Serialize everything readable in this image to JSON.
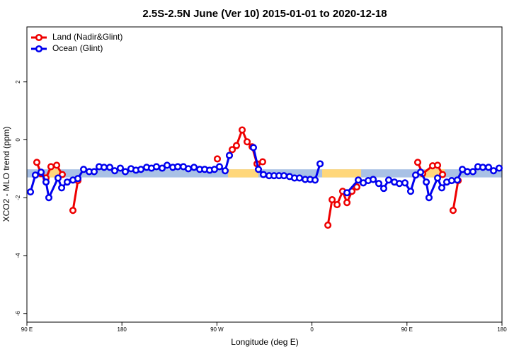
{
  "chart_data": {
    "type": "line",
    "title": "2.5S-2.5N June (Ver 10)   2015-01-01 to 2020-12-18",
    "xlabel": "Longitude (deg E)",
    "ylabel": "XCO2 - MLO trend (ppm)",
    "xlim": [
      90,
      540
    ],
    "ylim": [
      -6.3,
      3.9
    ],
    "xticks": [
      {
        "value": 90,
        "label": "90 E"
      },
      180,
      {
        "value": 270,
        "label": "90 W"
      },
      {
        "value": 360,
        "label": "0"
      },
      {
        "value": 450,
        "label": "90 E"
      },
      {
        "value": 540,
        "label": "180"
      }
    ],
    "yticks": [
      -6,
      -4,
      -2,
      0,
      2
    ],
    "legend": "upper left",
    "reference_band": {
      "low": -1.3,
      "high": -1.02,
      "color": "#a9c1e5"
    },
    "highlight_ranges": {
      "color": "#ffd77a",
      "ranges": [
        [
          111.5,
          121.5
        ],
        [
          280.5,
          309.3
        ],
        [
          369.7,
          406.6
        ],
        [
          466.9,
          485.7
        ]
      ]
    },
    "series": [
      {
        "name": "Land (Nadir&Glint)",
        "color": "#ee0000",
        "x": [
          99.4,
          103.4,
          108.1,
          112.8,
          118.2,
          123.5,
          null,
          133.6,
          138.3,
          null,
          270.4,
          null,
          281.8,
          284.5,
          288.5,
          293.9,
          298.6,
          303.3,
          308.0,
          313.3,
          null,
          375.1,
          379.1,
          383.8,
          389.1,
          393.2,
          397.9,
          402.5,
          null,
          460.2,
          464.9,
          474.3,
          479.0,
          483.7,
          null,
          493.7,
          498.5
        ],
        "values": [
          -0.78,
          -1.17,
          -1.32,
          -0.93,
          -0.88,
          -1.2,
          null,
          -2.44,
          -1.41,
          null,
          -0.66,
          null,
          -0.54,
          -0.34,
          -0.2,
          0.34,
          -0.07,
          -0.24,
          -0.83,
          -0.76,
          null,
          -2.95,
          -2.07,
          -2.24,
          -1.78,
          -2.17,
          -1.78,
          -1.63,
          null,
          -0.78,
          -1.17,
          -0.9,
          -0.88,
          -1.2,
          null,
          -2.44,
          -1.41
        ]
      },
      {
        "name": "Ocean (Glint)",
        "color": "#0000ee",
        "x": [
          93.4,
          98.0,
          103.4,
          108.1,
          110.8,
          119.5,
          122.9,
          128.2,
          133.6,
          138.3,
          143.7,
          149.0,
          153.7,
          158.4,
          163.1,
          168.5,
          173.2,
          178.5,
          183.2,
          188.6,
          193.3,
          198.0,
          203.4,
          208.0,
          212.7,
          218.1,
          222.8,
          228.2,
          232.9,
          238.2,
          242.9,
          248.3,
          253.7,
          258.4,
          263.1,
          267.7,
          272.4,
          277.8,
          281.8,
          null,
          304.6,
          309.3,
          314.0,
          319.4,
          324.1,
          328.8,
          333.5,
          338.8,
          343.5,
          348.2,
          353.6,
          358.3,
          363.0,
          367.7,
          null,
          393.2,
          403.9,
          408.6,
          413.3,
          418.0,
          423.3,
          428.0,
          432.7,
          438.1,
          442.8,
          448.1,
          453.5,
          458.2,
          462.9,
          468.3,
          470.9,
          479.0,
          483.0,
          487.7,
          492.4,
          497.7,
          502.5,
          507.2,
          512.5,
          517.2,
          521.9,
          527.3,
          532.0,
          537.3
        ],
        "values": [
          -1.8,
          -1.22,
          -1.12,
          -1.46,
          -2.0,
          -1.32,
          -1.66,
          -1.46,
          -1.39,
          -1.34,
          -1.02,
          -1.1,
          -1.1,
          -0.93,
          -0.95,
          -0.95,
          -1.07,
          -0.98,
          -1.1,
          -1.0,
          -1.05,
          -1.02,
          -0.95,
          -0.98,
          -0.93,
          -0.98,
          -0.88,
          -0.95,
          -0.93,
          -0.93,
          -1.0,
          -0.95,
          -1.02,
          -1.02,
          -1.05,
          -1.02,
          -0.93,
          -1.07,
          -0.54,
          null,
          -0.27,
          -1.02,
          -1.2,
          -1.24,
          -1.24,
          -1.24,
          -1.24,
          -1.27,
          -1.32,
          -1.32,
          -1.37,
          -1.37,
          -1.39,
          -0.83,
          null,
          -1.83,
          -1.39,
          -1.49,
          -1.41,
          -1.37,
          -1.51,
          -1.68,
          -1.39,
          -1.46,
          -1.51,
          -1.49,
          -1.78,
          -1.22,
          -1.12,
          -1.46,
          -2.0,
          -1.32,
          -1.66,
          -1.46,
          -1.41,
          -1.39,
          -1.02,
          -1.1,
          -1.1,
          -0.93,
          -0.95,
          -0.95,
          -1.07,
          -0.98
        ]
      }
    ]
  }
}
